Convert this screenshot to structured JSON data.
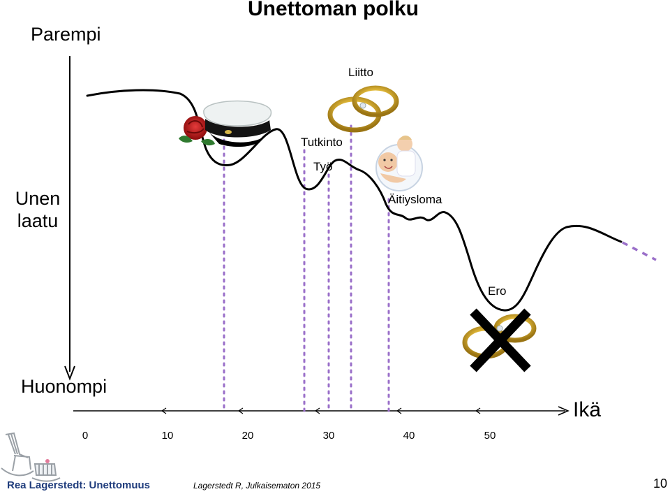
{
  "title": "Unettoman polku",
  "y_axis": {
    "top_label": "Parempi",
    "bottom_label": "Huonompi",
    "name": "Unen laatu"
  },
  "x_axis": {
    "name": "Ikä",
    "ticks": [
      "0",
      "10",
      "20",
      "30",
      "40",
      "50"
    ]
  },
  "events": {
    "liitto": "Liitto",
    "tutkinto": "Tutkinto",
    "tyo": "Työ",
    "aitiysloma": "Äitiysloma",
    "ero": "Ero"
  },
  "footer": {
    "left": "Rea Lagerstedt: Unettomuus",
    "middle": "Lagerstedt R, Julkaisematon 2015",
    "page": "10"
  },
  "colors": {
    "dotted_line": "#9a6fc9",
    "curve": "#000000",
    "brand_text": "#1f3c7c"
  }
}
